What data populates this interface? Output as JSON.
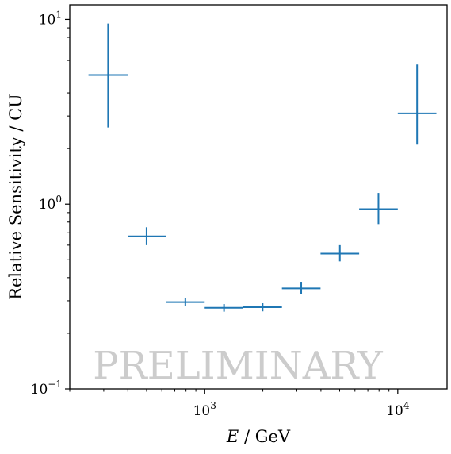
{
  "chart_data": {
    "type": "scatter",
    "title": "",
    "xlabel": {
      "symbol": "E",
      "rest": " / GeV"
    },
    "ylabel": "Relative Sensitivity / CU",
    "xscale": "log",
    "yscale": "log",
    "xlim": [
      200,
      18000
    ],
    "ylim": [
      0.1,
      12
    ],
    "grid": false,
    "watermark": "PRELIMINARY",
    "color": "#1f77b4",
    "x_ticks": [
      {
        "base": "10",
        "exp": "3",
        "value": 1000
      },
      {
        "base": "10",
        "exp": "4",
        "value": 10000
      }
    ],
    "y_ticks": [
      {
        "base": "10",
        "exp": "−1",
        "value": 0.1
      },
      {
        "base": "10",
        "exp": "0",
        "value": 1
      },
      {
        "base": "10",
        "exp": "1",
        "value": 10
      }
    ],
    "points": [
      {
        "x": 316,
        "xlo": 250,
        "xhi": 400,
        "y": 5.0,
        "ylo": 2.6,
        "yhi": 9.5
      },
      {
        "x": 500,
        "xlo": 400,
        "xhi": 630,
        "y": 0.67,
        "ylo": 0.6,
        "yhi": 0.75
      },
      {
        "x": 794,
        "xlo": 630,
        "xhi": 1000,
        "y": 0.295,
        "ylo": 0.28,
        "yhi": 0.31
      },
      {
        "x": 1259,
        "xlo": 1000,
        "xhi": 1585,
        "y": 0.275,
        "ylo": 0.262,
        "yhi": 0.288
      },
      {
        "x": 1995,
        "xlo": 1585,
        "xhi": 2512,
        "y": 0.277,
        "ylo": 0.263,
        "yhi": 0.291
      },
      {
        "x": 3162,
        "xlo": 2512,
        "xhi": 3981,
        "y": 0.35,
        "ylo": 0.325,
        "yhi": 0.38
      },
      {
        "x": 5012,
        "xlo": 3981,
        "xhi": 6310,
        "y": 0.54,
        "ylo": 0.49,
        "yhi": 0.6
      },
      {
        "x": 7943,
        "xlo": 6310,
        "xhi": 10000,
        "y": 0.94,
        "ylo": 0.78,
        "yhi": 1.15
      },
      {
        "x": 12589,
        "xlo": 10000,
        "xhi": 15849,
        "y": 3.1,
        "ylo": 2.1,
        "yhi": 5.7
      }
    ]
  }
}
